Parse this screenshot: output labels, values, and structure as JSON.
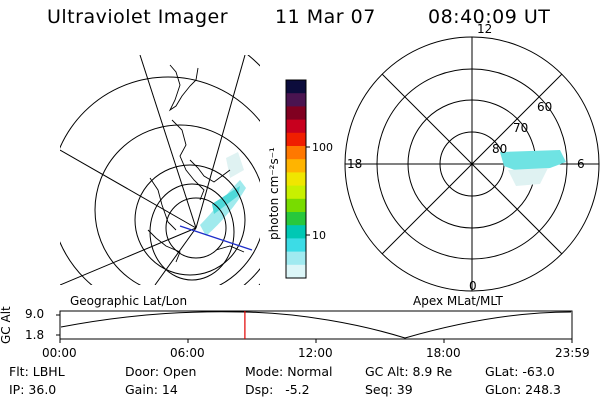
{
  "header": {
    "instrument": "Ultraviolet Imager",
    "date": "11 Mar 07",
    "time": "08:40:09 UT"
  },
  "left_panel": {
    "label": "Geographic Lat/Lon"
  },
  "right_panel": {
    "label": "Apex MLat/MLT",
    "mlt_labels": {
      "top": "12",
      "right": "6",
      "bottom": "0",
      "left": "18"
    },
    "lat_labels": [
      "60",
      "70",
      "80"
    ]
  },
  "colorbar": {
    "unit_label": "photon cm⁻²s⁻¹",
    "tick_labels": [
      "100",
      "10"
    ],
    "colors": [
      "#0c0c3c",
      "#4a1450",
      "#800020",
      "#c8001e",
      "#f01e00",
      "#ff7800",
      "#ffb400",
      "#f0e600",
      "#c8f000",
      "#78dc00",
      "#28c83c",
      "#00c8b4",
      "#3cdce6",
      "#a0eaf0",
      "#dcf6f8"
    ]
  },
  "timeline": {
    "ylabel": "GC Alt",
    "y_ticks": [
      "9.0",
      "1.8"
    ],
    "x_ticks": [
      "00:00",
      "06:00",
      "12:00",
      "18:00",
      "23:59"
    ],
    "marker_color": "#e00000",
    "marker_fraction": 0.3612
  },
  "info": {
    "row1": {
      "flt": "Flt: LBHL",
      "door": "Door: Open",
      "mode": "Mode: Normal",
      "gcalt": "GC Alt: 8.9 Re",
      "glat": "GLat: -63.0"
    },
    "row2": {
      "ip": "IP: 36.0",
      "gain": "Gain: 14",
      "dsp": "Dsp:   -5.2",
      "seq": "Seq: 39",
      "glon": "GLon: 248.3"
    }
  }
}
